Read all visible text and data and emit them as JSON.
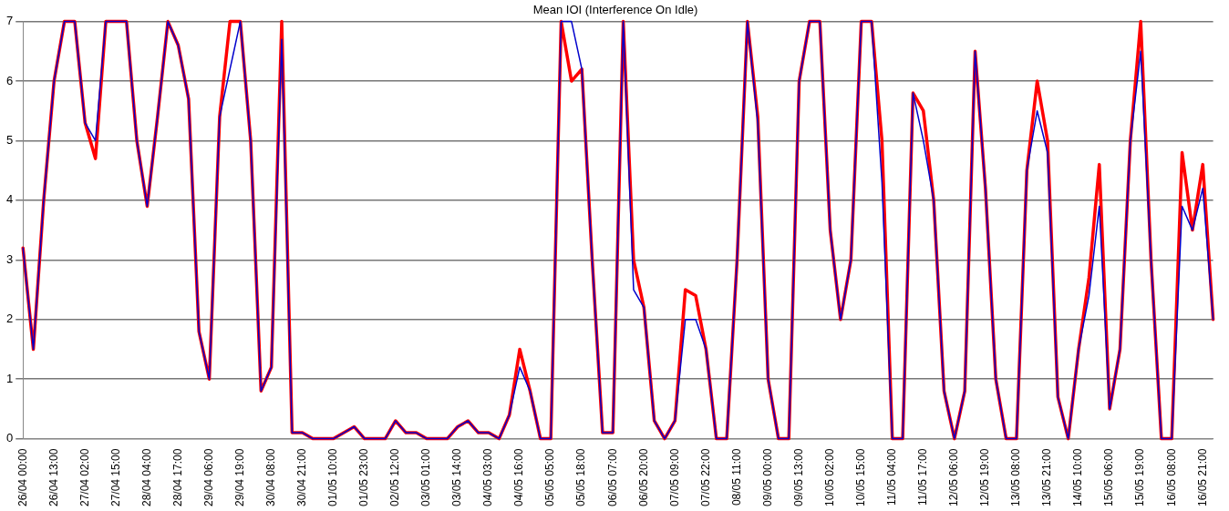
{
  "chart_data": {
    "type": "line",
    "title": "Mean IOI (Interference On Idle)",
    "categories": [
      "26/04 00:00",
      null,
      null,
      "26/04 13:00",
      null,
      null,
      "27/04 02:00",
      null,
      null,
      "27/04 15:00",
      null,
      null,
      "28/04 04:00",
      null,
      null,
      "28/04 17:00",
      null,
      null,
      "29/04 06:00",
      null,
      null,
      "29/04 19:00",
      null,
      null,
      "30/04 08:00",
      null,
      null,
      "30/04 21:00",
      null,
      null,
      "01/05 10:00",
      null,
      null,
      "01/05 23:00",
      null,
      null,
      "02/05 12:00",
      null,
      null,
      "03/05 01:00",
      null,
      null,
      "03/05 14:00",
      null,
      null,
      "04/05 03:00",
      null,
      null,
      "04/05 16:00",
      null,
      null,
      "05/05 05:00",
      null,
      null,
      "05/05 18:00",
      null,
      null,
      "06/05 07:00",
      null,
      null,
      "06/05 20:00",
      null,
      null,
      "07/05 09:00",
      null,
      null,
      "07/05 22:00",
      null,
      null,
      "08/05 11:00",
      null,
      null,
      "09/05 00:00",
      null,
      null,
      "09/05 13:00",
      null,
      null,
      "10/05 02:00",
      null,
      null,
      "10/05 15:00",
      null,
      null,
      "11/05 04:00",
      null,
      null,
      "11/05 17:00",
      null,
      null,
      "12/05 06:00",
      null,
      null,
      "12/05 19:00",
      null,
      null,
      "13/05 08:00",
      null,
      null,
      "13/05 21:00",
      null,
      null,
      "14/05 10:00",
      null,
      null,
      "15/05 06:00",
      null,
      null,
      "15/05 19:00",
      null,
      null,
      "16/05 08:00",
      null,
      null,
      "16/05 21:00",
      null
    ],
    "series": [
      {
        "color": "#ff0000",
        "values": [
          3.2,
          1.5,
          4.0,
          6.0,
          7,
          7,
          5.3,
          4.7,
          7,
          7,
          7,
          5.0,
          3.9,
          5.4,
          7,
          6.6,
          5.7,
          1.8,
          1.0,
          5.4,
          7,
          7,
          5.0,
          0.8,
          1.2,
          7,
          0.1,
          0.1,
          0,
          0,
          0,
          0.1,
          0.2,
          0,
          0,
          0,
          0.3,
          0.1,
          0.1,
          0,
          0,
          0,
          0.2,
          0.3,
          0.1,
          0.1,
          0,
          0.4,
          1.5,
          0.8,
          0,
          0,
          7,
          6.0,
          6.2,
          3.0,
          0.1,
          0.1,
          7,
          3.0,
          2.2,
          0.3,
          0,
          0.3,
          2.5,
          2.4,
          1.5,
          0,
          0,
          3.0,
          7,
          5.4,
          1.0,
          0,
          0,
          6.0,
          7,
          7,
          3.5,
          2.0,
          3.0,
          7,
          7,
          5.0,
          0,
          0,
          5.8,
          5.5,
          4.0,
          0.8,
          0,
          0.8,
          6.5,
          4.2,
          1.0,
          0,
          0,
          4.5,
          6.0,
          5.0,
          0.7,
          0,
          1.5,
          2.7,
          4.6,
          0.5,
          1.5,
          5.0,
          7,
          3.0,
          0,
          0,
          4.8,
          3.5,
          4.6,
          2.0
        ]
      },
      {
        "color": "#0000cc",
        "values": [
          3.2,
          1.5,
          4.0,
          6.0,
          7,
          7,
          5.3,
          5.0,
          7,
          7,
          7,
          5.0,
          3.9,
          5.4,
          7,
          6.6,
          5.7,
          1.8,
          1.0,
          5.4,
          6.2,
          7,
          5.0,
          0.8,
          1.2,
          6.7,
          0.1,
          0.1,
          0,
          0,
          0,
          0.1,
          0.2,
          0,
          0,
          0,
          0.3,
          0.1,
          0.1,
          0,
          0,
          0,
          0.2,
          0.3,
          0.1,
          0.1,
          0,
          0.4,
          1.2,
          0.8,
          0,
          0,
          7,
          7,
          6.2,
          3.0,
          0.1,
          0.1,
          7,
          2.5,
          2.2,
          0.3,
          0,
          0.3,
          2.0,
          2.0,
          1.5,
          0,
          0,
          3.0,
          7,
          5.3,
          1.0,
          0,
          0,
          6.0,
          7,
          7,
          3.5,
          2.0,
          3.0,
          7,
          7,
          4.3,
          0,
          0,
          5.8,
          5.0,
          4.0,
          0.8,
          0,
          0.8,
          6.5,
          4.2,
          1.0,
          0,
          0,
          4.5,
          5.5,
          4.8,
          0.7,
          0,
          1.5,
          2.4,
          3.9,
          0.5,
          1.5,
          5.0,
          6.5,
          3.0,
          0,
          0,
          3.9,
          3.5,
          4.2,
          2.0
        ]
      }
    ],
    "ylim": [
      0,
      7
    ],
    "yticks": [
      0,
      1,
      2,
      3,
      4,
      5,
      6,
      7
    ],
    "grid": "y",
    "legend": false,
    "marker": "none",
    "line_style": "solid"
  }
}
